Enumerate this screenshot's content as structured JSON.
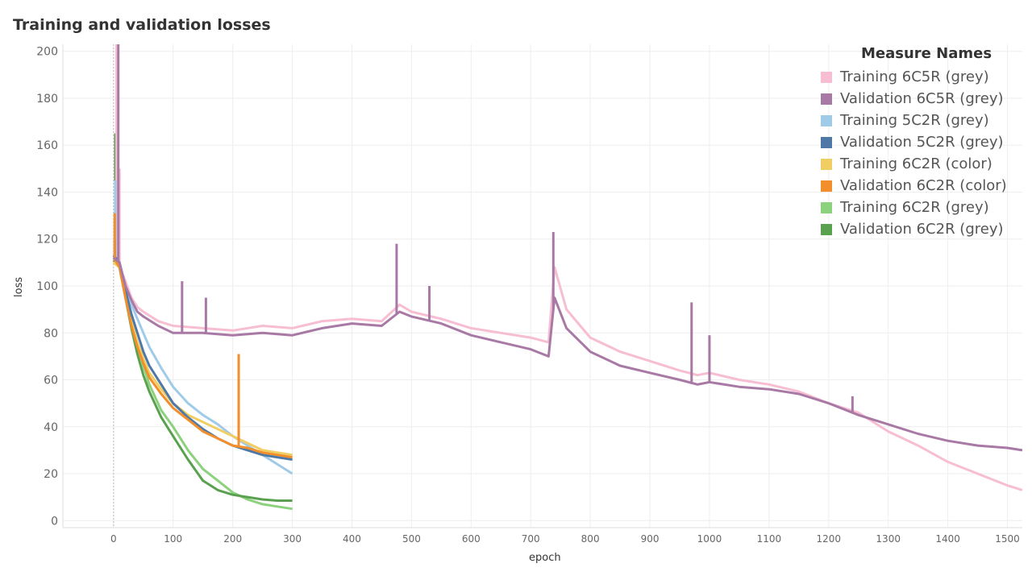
{
  "chart_data": {
    "type": "line",
    "title": "Training and validation losses",
    "xlabel": "epoch",
    "ylabel": "loss",
    "xlim": [
      -85,
      1525
    ],
    "ylim": [
      -3,
      203
    ],
    "xticks": [
      0,
      100,
      200,
      300,
      400,
      500,
      600,
      700,
      800,
      900,
      1000,
      1100,
      1200,
      1300,
      1400,
      1500
    ],
    "yticks": [
      0,
      20,
      40,
      60,
      80,
      100,
      120,
      140,
      160,
      180,
      200
    ],
    "grid": true,
    "legend": {
      "title": "Measure Names",
      "position": "top-right"
    },
    "series": [
      {
        "name": "Training 6C5R (grey)",
        "color": "#F7BDD3",
        "points": [
          [
            0,
            110
          ],
          [
            10,
            108
          ],
          [
            20,
            102
          ],
          [
            30,
            95
          ],
          [
            40,
            91
          ],
          [
            50,
            89
          ],
          [
            75,
            85
          ],
          [
            100,
            83
          ],
          [
            150,
            82
          ],
          [
            200,
            81
          ],
          [
            250,
            83
          ],
          [
            300,
            82
          ],
          [
            350,
            85
          ],
          [
            400,
            86
          ],
          [
            450,
            85
          ],
          [
            480,
            92
          ],
          [
            500,
            89
          ],
          [
            550,
            86
          ],
          [
            600,
            82
          ],
          [
            650,
            80
          ],
          [
            700,
            78
          ],
          [
            730,
            76
          ],
          [
            740,
            108
          ],
          [
            760,
            90
          ],
          [
            800,
            78
          ],
          [
            850,
            72
          ],
          [
            900,
            68
          ],
          [
            950,
            64
          ],
          [
            980,
            62
          ],
          [
            1000,
            63
          ],
          [
            1050,
            60
          ],
          [
            1100,
            58
          ],
          [
            1150,
            55
          ],
          [
            1200,
            50
          ],
          [
            1250,
            46
          ],
          [
            1300,
            38
          ],
          [
            1350,
            32
          ],
          [
            1400,
            25
          ],
          [
            1450,
            20
          ],
          [
            1500,
            15
          ],
          [
            1525,
            13
          ]
        ],
        "spikes": [
          [
            5,
            205
          ],
          [
            10,
            150
          ]
        ]
      },
      {
        "name": "Validation 6C5R (grey)",
        "color": "#A879A5",
        "points": [
          [
            0,
            112
          ],
          [
            10,
            110
          ],
          [
            20,
            100
          ],
          [
            30,
            94
          ],
          [
            40,
            89
          ],
          [
            50,
            87
          ],
          [
            75,
            83
          ],
          [
            100,
            80
          ],
          [
            150,
            80
          ],
          [
            200,
            79
          ],
          [
            250,
            80
          ],
          [
            300,
            79
          ],
          [
            350,
            82
          ],
          [
            400,
            84
          ],
          [
            450,
            83
          ],
          [
            480,
            89
          ],
          [
            500,
            87
          ],
          [
            550,
            84
          ],
          [
            600,
            79
          ],
          [
            650,
            76
          ],
          [
            700,
            73
          ],
          [
            730,
            70
          ],
          [
            740,
            95
          ],
          [
            760,
            82
          ],
          [
            800,
            72
          ],
          [
            850,
            66
          ],
          [
            900,
            63
          ],
          [
            950,
            60
          ],
          [
            980,
            58
          ],
          [
            1000,
            59
          ],
          [
            1050,
            57
          ],
          [
            1100,
            56
          ],
          [
            1150,
            54
          ],
          [
            1200,
            50
          ],
          [
            1250,
            45
          ],
          [
            1300,
            41
          ],
          [
            1350,
            37
          ],
          [
            1400,
            34
          ],
          [
            1450,
            32
          ],
          [
            1500,
            31
          ],
          [
            1525,
            30
          ]
        ],
        "spikes": [
          [
            8,
            205
          ],
          [
            115,
            102
          ],
          [
            155,
            95
          ],
          [
            475,
            118
          ],
          [
            530,
            100
          ],
          [
            738,
            123
          ],
          [
            970,
            93
          ],
          [
            1000,
            79
          ],
          [
            1240,
            53
          ]
        ]
      },
      {
        "name": "Training 5C2R (grey)",
        "color": "#A0CBE8",
        "points": [
          [
            0,
            112
          ],
          [
            10,
            110
          ],
          [
            20,
            100
          ],
          [
            30,
            92
          ],
          [
            40,
            86
          ],
          [
            50,
            80
          ],
          [
            60,
            74
          ],
          [
            80,
            65
          ],
          [
            100,
            57
          ],
          [
            125,
            50
          ],
          [
            150,
            45
          ],
          [
            175,
            41
          ],
          [
            200,
            36
          ],
          [
            225,
            32
          ],
          [
            250,
            28
          ],
          [
            275,
            24
          ],
          [
            300,
            20
          ]
        ],
        "spikes": [
          [
            3,
            145
          ]
        ]
      },
      {
        "name": "Validation 5C2R (grey)",
        "color": "#4E79A7",
        "points": [
          [
            0,
            113
          ],
          [
            10,
            110
          ],
          [
            20,
            98
          ],
          [
            30,
            88
          ],
          [
            40,
            80
          ],
          [
            50,
            72
          ],
          [
            60,
            66
          ],
          [
            80,
            58
          ],
          [
            100,
            50
          ],
          [
            125,
            44
          ],
          [
            150,
            39
          ],
          [
            175,
            35
          ],
          [
            200,
            32
          ],
          [
            225,
            30
          ],
          [
            250,
            28
          ],
          [
            275,
            27
          ],
          [
            300,
            26
          ]
        ],
        "spikes": [
          [
            2,
            120
          ]
        ]
      },
      {
        "name": "Training 6C2R (color)",
        "color": "#F1CE63",
        "points": [
          [
            0,
            110
          ],
          [
            10,
            108
          ],
          [
            20,
            97
          ],
          [
            30,
            85
          ],
          [
            40,
            76
          ],
          [
            50,
            69
          ],
          [
            60,
            63
          ],
          [
            80,
            56
          ],
          [
            100,
            50
          ],
          [
            125,
            45
          ],
          [
            150,
            42
          ],
          [
            175,
            39
          ],
          [
            200,
            36
          ],
          [
            225,
            33
          ],
          [
            250,
            30
          ],
          [
            275,
            29
          ],
          [
            300,
            28
          ]
        ],
        "spikes": [
          [
            210,
            48
          ]
        ]
      },
      {
        "name": "Validation 6C2R (color)",
        "color": "#F28E2B",
        "points": [
          [
            0,
            112
          ],
          [
            10,
            108
          ],
          [
            20,
            95
          ],
          [
            30,
            83
          ],
          [
            40,
            74
          ],
          [
            50,
            67
          ],
          [
            60,
            61
          ],
          [
            80,
            54
          ],
          [
            100,
            48
          ],
          [
            125,
            43
          ],
          [
            150,
            38
          ],
          [
            175,
            35
          ],
          [
            200,
            32
          ],
          [
            225,
            31
          ],
          [
            250,
            29
          ],
          [
            275,
            28
          ],
          [
            300,
            27
          ]
        ],
        "spikes": [
          [
            2,
            131
          ],
          [
            210,
            71
          ]
        ]
      },
      {
        "name": "Training 6C2R (grey)",
        "color": "#8CD17D",
        "points": [
          [
            0,
            110
          ],
          [
            10,
            108
          ],
          [
            20,
            96
          ],
          [
            30,
            85
          ],
          [
            40,
            75
          ],
          [
            50,
            66
          ],
          [
            60,
            58
          ],
          [
            80,
            47
          ],
          [
            100,
            40
          ],
          [
            125,
            30
          ],
          [
            150,
            22
          ],
          [
            175,
            17
          ],
          [
            200,
            12
          ],
          [
            225,
            9
          ],
          [
            250,
            7
          ],
          [
            275,
            6
          ],
          [
            300,
            5
          ]
        ],
        "spikes": []
      },
      {
        "name": "Validation 6C2R (grey)",
        "color": "#59A14F",
        "points": [
          [
            0,
            111
          ],
          [
            10,
            108
          ],
          [
            20,
            95
          ],
          [
            30,
            82
          ],
          [
            40,
            71
          ],
          [
            50,
            62
          ],
          [
            60,
            55
          ],
          [
            80,
            44
          ],
          [
            100,
            36
          ],
          [
            125,
            26
          ],
          [
            150,
            17
          ],
          [
            175,
            13
          ],
          [
            200,
            11
          ],
          [
            225,
            10
          ],
          [
            250,
            9
          ],
          [
            275,
            8.5
          ],
          [
            300,
            8.5
          ]
        ],
        "spikes": [
          [
            3,
            165
          ]
        ]
      }
    ]
  }
}
